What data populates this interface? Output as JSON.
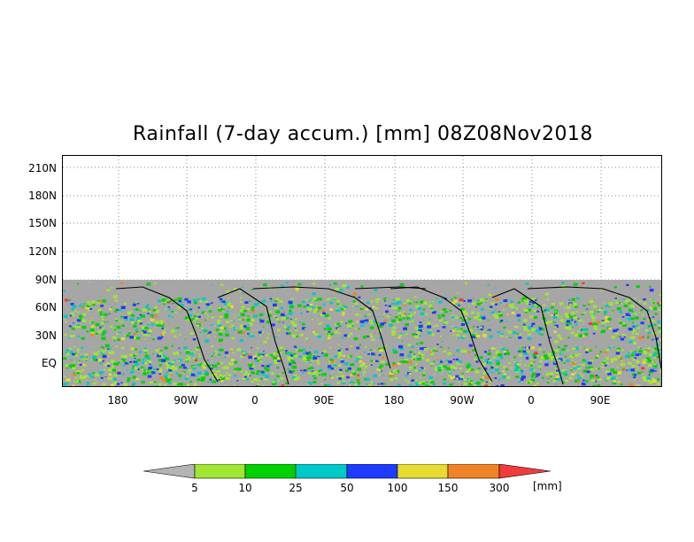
{
  "title": "Rainfall (7-day accum.) [mm] 08Z08Nov2018",
  "lat_labels": [
    "210N",
    "180N",
    "150N",
    "120N",
    "90N",
    "60N",
    "30N",
    "EQ"
  ],
  "lon_labels": [
    "180",
    "90W",
    "0",
    "90E",
    "180",
    "90W",
    "0",
    "90E"
  ],
  "colorbar": {
    "labels": [
      "5",
      "10",
      "25",
      "50",
      "100",
      "150",
      "300"
    ],
    "unit": "[mm]",
    "colors": [
      "#b4b4b4",
      "#a0e632",
      "#00d200",
      "#00c8c8",
      "#1e3cff",
      "#e6dc32",
      "#f08228",
      "#f03c3c"
    ]
  },
  "map": {
    "land_color": "#a6a6a6",
    "grid": "dotted",
    "data_extent_top": "90N"
  }
}
